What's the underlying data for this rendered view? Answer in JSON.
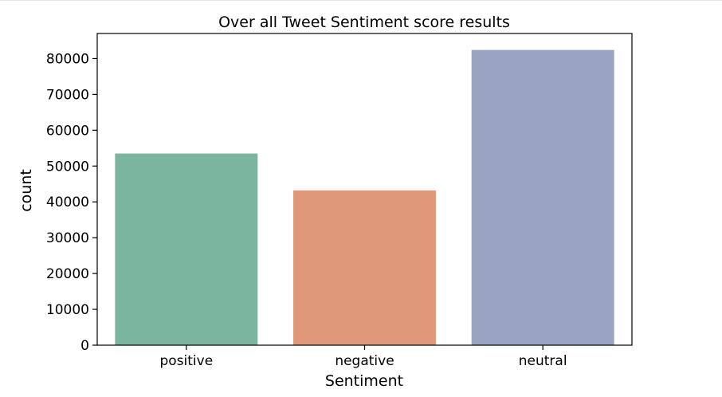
{
  "chart_data": {
    "type": "bar",
    "title": "Over all Tweet Sentiment score results",
    "xlabel": "Sentiment",
    "ylabel": "count",
    "categories": [
      "positive",
      "negative",
      "neutral"
    ],
    "values": [
      53500,
      43200,
      82400
    ],
    "colors": [
      "#7bb5a0",
      "#e09978",
      "#98a4c2"
    ],
    "ylim": [
      0,
      87000
    ],
    "yticks": [
      0,
      10000,
      20000,
      30000,
      40000,
      50000,
      60000,
      70000,
      80000
    ],
    "grid": false,
    "legend": "none"
  }
}
